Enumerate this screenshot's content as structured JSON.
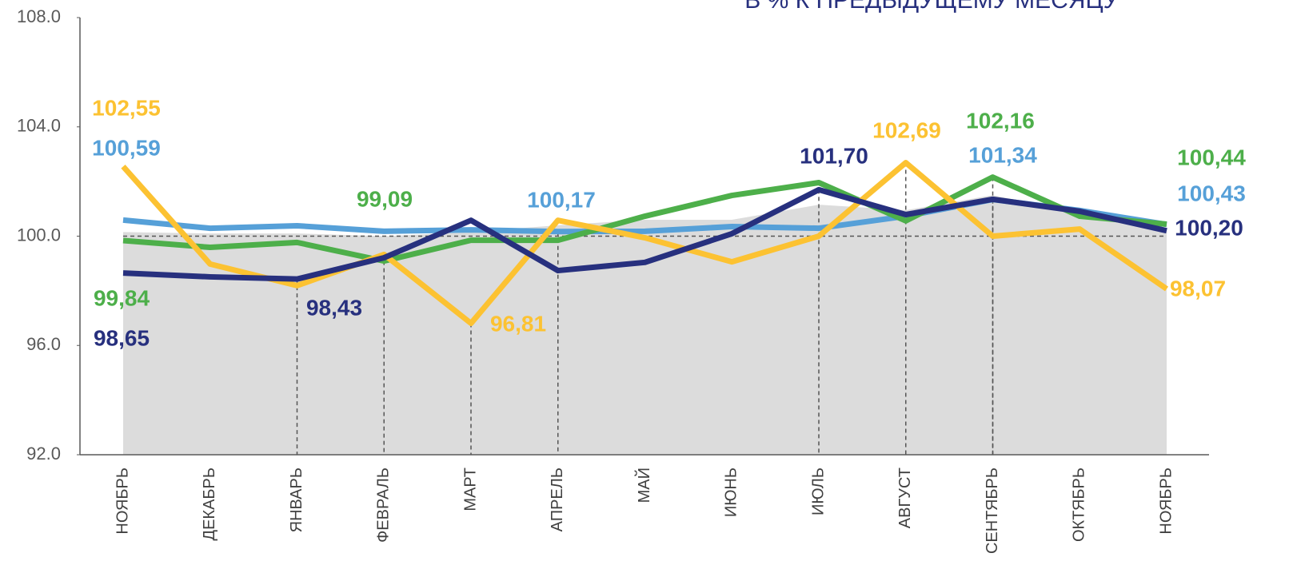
{
  "chart_data": {
    "type": "line",
    "title": "В % К ПРЕДЫДУЩЕМУ МЕСЯЦУ",
    "categories": [
      "НОЯБРЬ",
      "ДЕКАБРЬ",
      "ЯНВАРЬ",
      "ФЕВРАЛЬ",
      "МАРТ",
      "АПРЕЛЬ",
      "МАЙ",
      "ИЮНЬ",
      "ИЮЛЬ",
      "АВГУСТ",
      "СЕНТЯБРЬ",
      "ОКТЯБРЬ",
      "НОЯБРЬ"
    ],
    "ylim": [
      92,
      108
    ],
    "yticks": [
      {
        "value": 92,
        "label": "92.0"
      },
      {
        "value": 96,
        "label": "96.0"
      },
      {
        "value": 100,
        "label": "100.0"
      },
      {
        "value": 104,
        "label": "104.0"
      },
      {
        "value": 108,
        "label": "108.0"
      }
    ],
    "reference_y": 100,
    "series": [
      {
        "kind": "area",
        "color": "#dcdcdc",
        "values": [
          100.15,
          100.1,
          100.1,
          100.0,
          100.15,
          100.4,
          100.6,
          100.6,
          101.15,
          100.95,
          101.5,
          100.85,
          100.25
        ]
      },
      {
        "color": "#56a0d8",
        "values": [
          100.59,
          100.29,
          100.38,
          100.18,
          100.23,
          100.17,
          100.18,
          100.35,
          100.29,
          100.73,
          101.34,
          100.94,
          100.43
        ],
        "value_labels": [
          "100,59",
          null,
          null,
          null,
          null,
          "100,17",
          null,
          null,
          null,
          null,
          "101,34",
          null,
          "100,43"
        ]
      },
      {
        "color": "#4daf4a",
        "values": [
          99.84,
          99.59,
          99.77,
          99.09,
          99.85,
          99.85,
          100.73,
          101.49,
          101.96,
          100.56,
          102.16,
          100.73,
          100.44
        ],
        "value_labels": [
          "99,84",
          null,
          null,
          "99,09",
          null,
          null,
          null,
          null,
          null,
          null,
          "102,16",
          null,
          "100,44"
        ]
      },
      {
        "color": "#fcc232",
        "values": [
          102.55,
          98.98,
          98.19,
          99.33,
          96.81,
          100.58,
          99.94,
          99.06,
          100.0,
          102.69,
          100.0,
          100.26,
          98.07
        ],
        "value_labels": [
          "102,55",
          null,
          null,
          null,
          "96,81",
          null,
          null,
          null,
          null,
          "102,69",
          null,
          null,
          "98,07"
        ]
      },
      {
        "color": "#27307e",
        "values": [
          98.65,
          98.51,
          98.43,
          99.21,
          100.58,
          98.74,
          99.04,
          100.09,
          101.7,
          100.79,
          101.35,
          100.91,
          100.2
        ],
        "value_labels": [
          "98,65",
          null,
          "98,43",
          null,
          null,
          null,
          null,
          null,
          "101,70",
          null,
          null,
          null,
          "100,20"
        ]
      }
    ]
  }
}
